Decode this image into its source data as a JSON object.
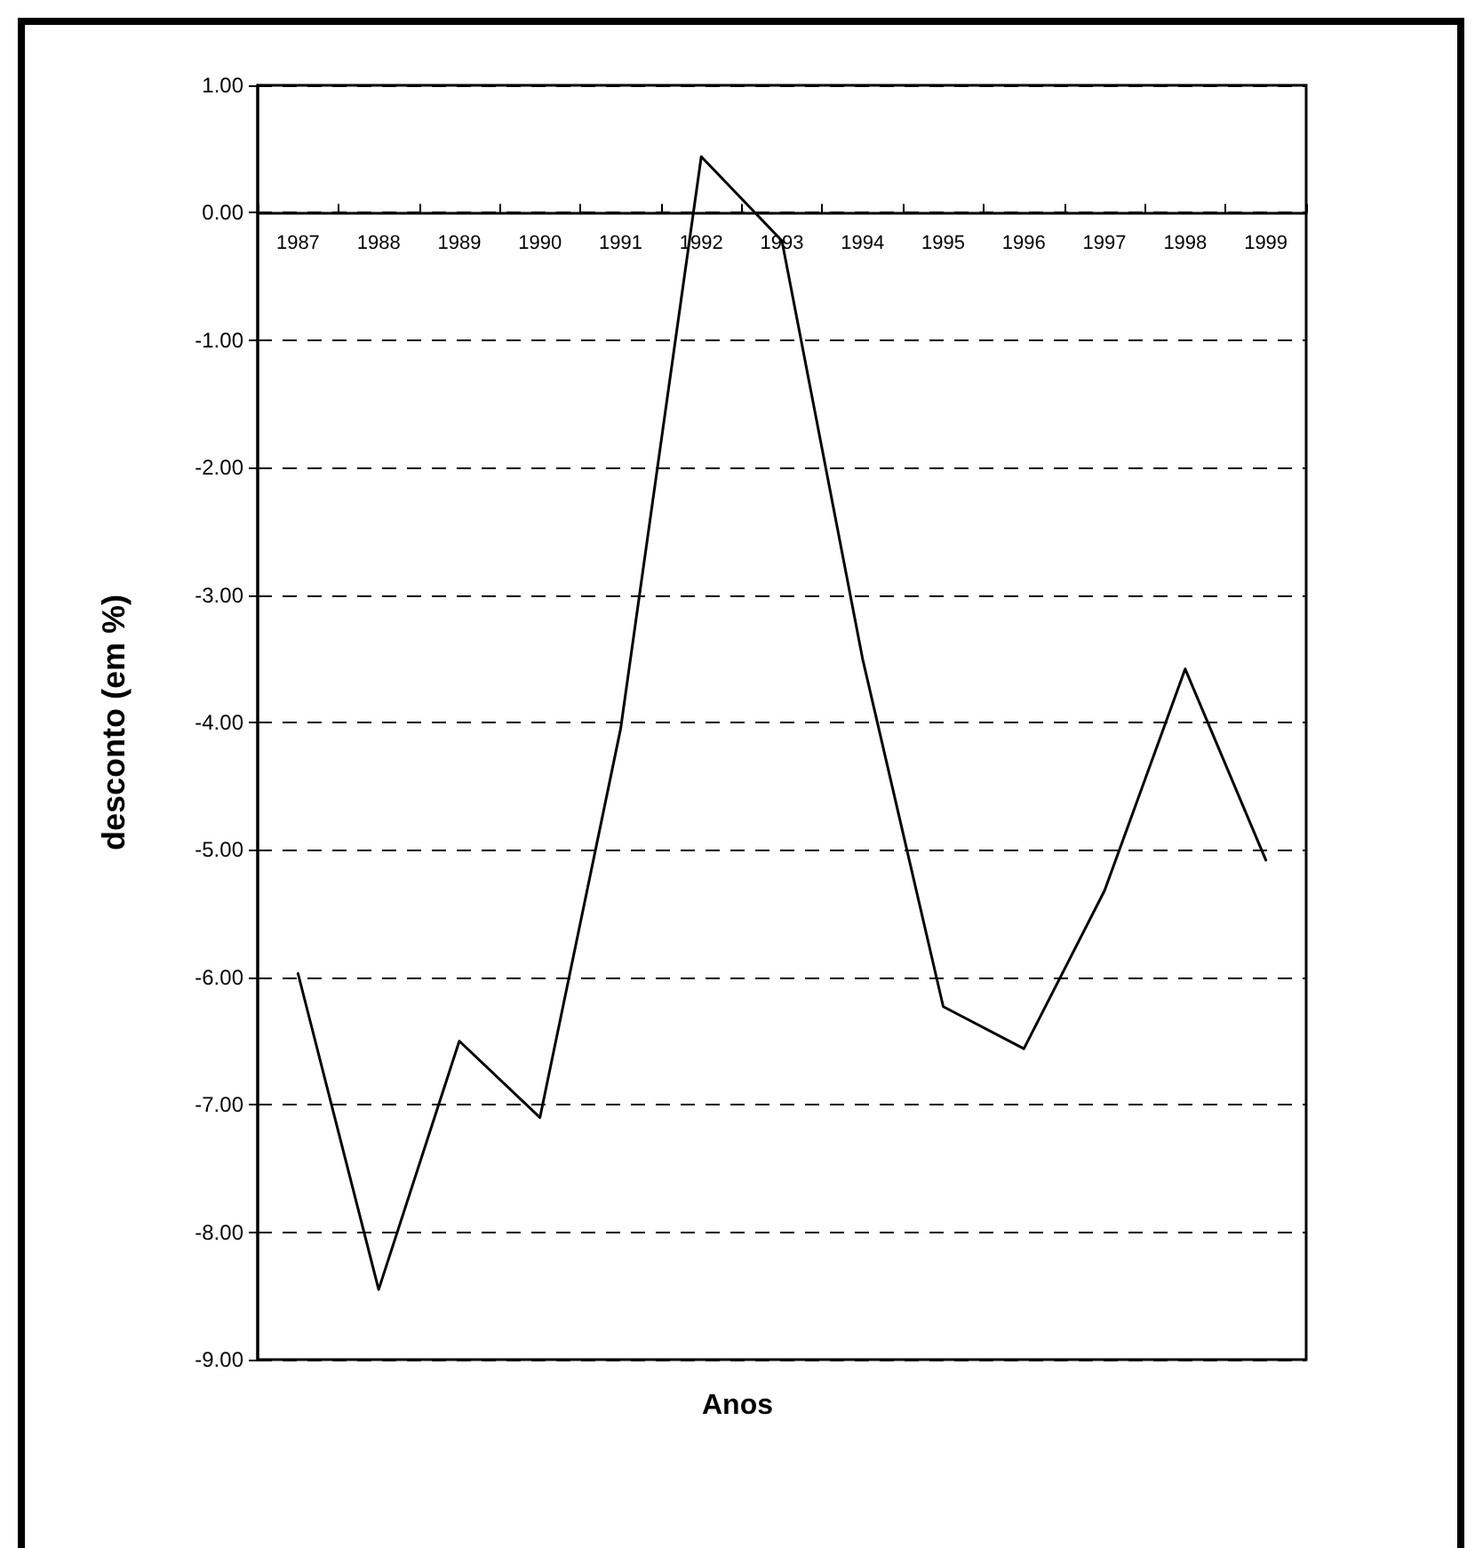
{
  "chart_data": {
    "type": "line",
    "xlabel": "Anos",
    "ylabel": "desconto (em %)",
    "categories": [
      "1987",
      "1988",
      "1989",
      "1990",
      "1991",
      "1992",
      "1993",
      "1994",
      "1995",
      "1996",
      "1997",
      "1998",
      "1999"
    ],
    "series": [
      {
        "color": "#000000",
        "values": [
          -5.97,
          -8.45,
          -6.5,
          -7.1,
          -4.05,
          0.44,
          -0.22,
          -3.5,
          -6.23,
          -6.56,
          -5.32,
          -3.58,
          -5.08
        ]
      }
    ],
    "ylim": [
      -9,
      1
    ],
    "yticks": [
      {
        "value": -9,
        "label": "-9.00"
      },
      {
        "value": -8,
        "label": "-8.00"
      },
      {
        "value": -7,
        "label": "-7.00"
      },
      {
        "value": -6,
        "label": "-6.00"
      },
      {
        "value": -5,
        "label": "-5.00"
      },
      {
        "value": -4,
        "label": "-4.00"
      },
      {
        "value": -3,
        "label": "-3.00"
      },
      {
        "value": -2,
        "label": "-2.00"
      },
      {
        "value": -1,
        "label": "-1.00"
      },
      {
        "value": 0,
        "label": "0.00"
      },
      {
        "value": 1,
        "label": "1.00"
      }
    ],
    "grid": "y",
    "marker": "none",
    "line_style": "solid"
  }
}
